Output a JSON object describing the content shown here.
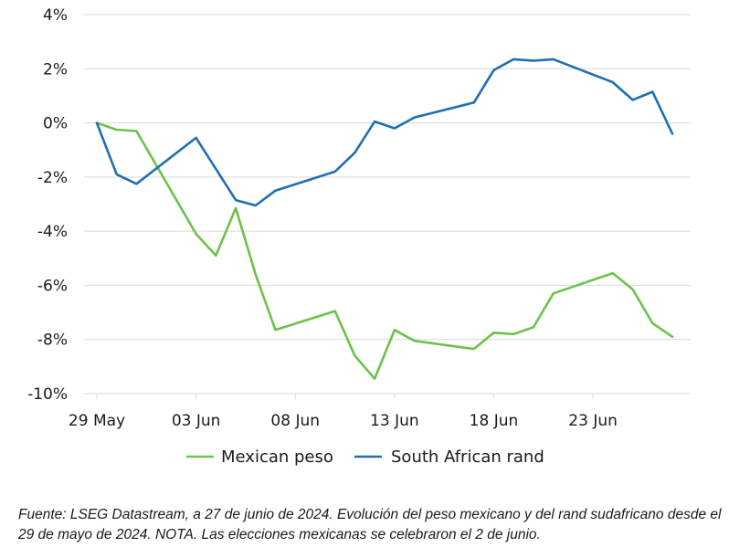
{
  "chart_data": {
    "type": "line",
    "title": "",
    "xlabel": "",
    "ylabel": "",
    "ylim": [
      -10,
      4
    ],
    "yticks": [
      4,
      2,
      0,
      -2,
      -4,
      -6,
      -8,
      -10
    ],
    "ytick_labels": [
      "4%",
      "2%",
      "0%",
      "-2%",
      "-4%",
      "-6%",
      "-8%",
      "-10%"
    ],
    "xlim": [
      "2024-05-29",
      "2024-06-28"
    ],
    "xticks": [
      "2024-05-29",
      "2024-06-03",
      "2024-06-08",
      "2024-06-13",
      "2024-06-18",
      "2024-06-23"
    ],
    "xtick_labels": [
      "29 May",
      "03 Jun",
      "08 Jun",
      "13 Jun",
      "18 Jun",
      "23 Jun"
    ],
    "grid": true,
    "legend_position": "bottom",
    "series": [
      {
        "name": "Mexican peso",
        "color": "#6cc24a",
        "points": [
          [
            "2024-05-29",
            0.0
          ],
          [
            "2024-05-30",
            -0.25
          ],
          [
            "2024-05-31",
            -0.3
          ],
          [
            "2024-06-03",
            -4.1
          ],
          [
            "2024-06-04",
            -4.9
          ],
          [
            "2024-06-05",
            -3.15
          ],
          [
            "2024-06-06",
            -5.6
          ],
          [
            "2024-06-07",
            -7.65
          ],
          [
            "2024-06-10",
            -6.95
          ],
          [
            "2024-06-11",
            -8.6
          ],
          [
            "2024-06-12",
            -9.45
          ],
          [
            "2024-06-13",
            -7.65
          ],
          [
            "2024-06-14",
            -8.05
          ],
          [
            "2024-06-17",
            -8.35
          ],
          [
            "2024-06-18",
            -7.75
          ],
          [
            "2024-06-19",
            -7.8
          ],
          [
            "2024-06-20",
            -7.55
          ],
          [
            "2024-06-21",
            -6.3
          ],
          [
            "2024-06-24",
            -5.55
          ],
          [
            "2024-06-25",
            -6.15
          ],
          [
            "2024-06-26",
            -7.4
          ],
          [
            "2024-06-27",
            -7.9
          ]
        ]
      },
      {
        "name": "South African rand",
        "color": "#1f6fb2",
        "points": [
          [
            "2024-05-29",
            0.0
          ],
          [
            "2024-05-30",
            -1.9
          ],
          [
            "2024-05-31",
            -2.25
          ],
          [
            "2024-06-03",
            -0.55
          ],
          [
            "2024-06-05",
            -2.85
          ],
          [
            "2024-06-06",
            -3.05
          ],
          [
            "2024-06-07",
            -2.5
          ],
          [
            "2024-06-10",
            -1.8
          ],
          [
            "2024-06-11",
            -1.1
          ],
          [
            "2024-06-12",
            0.05
          ],
          [
            "2024-06-13",
            -0.2
          ],
          [
            "2024-06-14",
            0.2
          ],
          [
            "2024-06-17",
            0.75
          ],
          [
            "2024-06-18",
            1.95
          ],
          [
            "2024-06-19",
            2.35
          ],
          [
            "2024-06-20",
            2.3
          ],
          [
            "2024-06-21",
            2.35
          ],
          [
            "2024-06-24",
            1.5
          ],
          [
            "2024-06-25",
            0.85
          ],
          [
            "2024-06-26",
            1.15
          ],
          [
            "2024-06-27",
            -0.4
          ]
        ]
      }
    ]
  },
  "caption": "Fuente: LSEG Datastream, a 27 de junio de 2024. Evolución del peso mexicano y del rand sudafricano desde el 29 de mayo de 2024. NOTA. Las elecciones mexicanas se celebraron el 2 de junio."
}
